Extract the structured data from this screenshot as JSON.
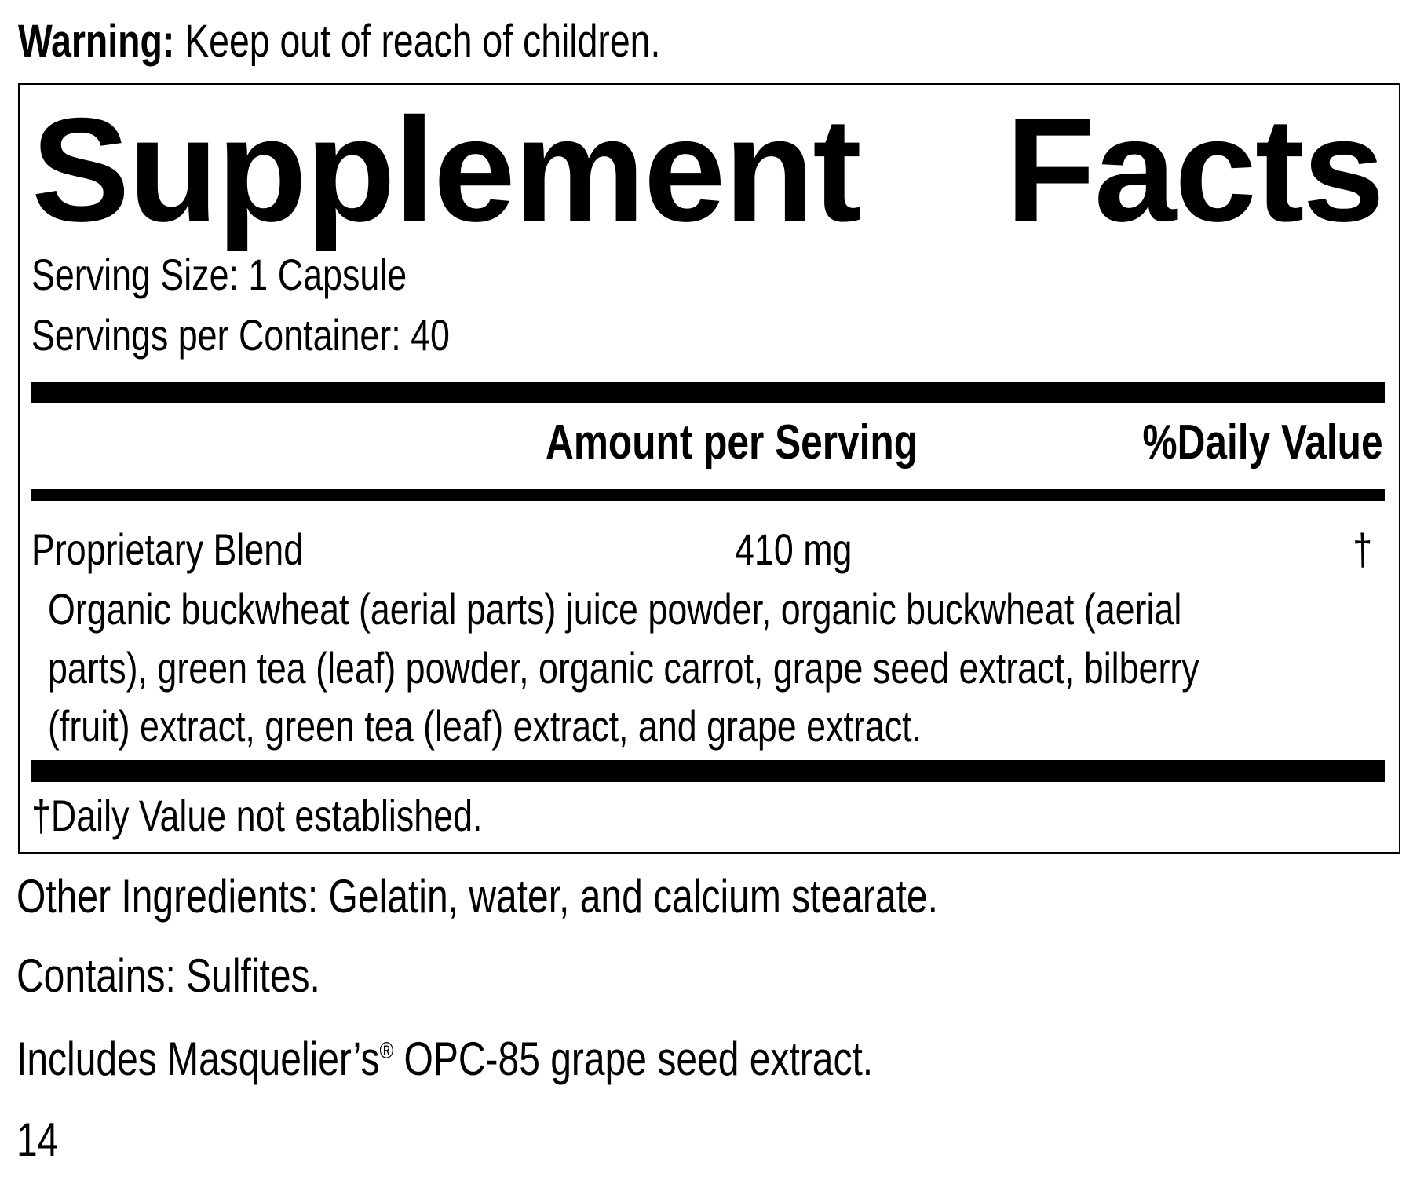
{
  "warning": {
    "label": "Warning:",
    "text": " Keep out of reach of children."
  },
  "panel": {
    "title_words": [
      "Supplement",
      "Facts"
    ],
    "serving_size": "Serving Size: 1 Capsule",
    "servings_per_container": "Servings per Container: 40",
    "header": {
      "amount": "Amount per Serving",
      "daily_value": "%Daily Value"
    },
    "rows": [
      {
        "name": "Proprietary Blend",
        "amount": "410 mg",
        "dv": "†"
      }
    ],
    "blend_lines": [
      "Organic buckwheat (aerial parts) juice powder, organic buckwheat (aerial",
      "parts), green tea (leaf) powder, organic carrot, grape seed extract, bilberry",
      "(fruit) extract, green tea (leaf) extract, and grape extract."
    ],
    "footnote": "†Daily Value not established."
  },
  "other_ingredients": "Other Ingredients: Gelatin, water, and calcium stearate.",
  "contains": "Contains: Sulfites.",
  "includes": {
    "before": "Includes Masquelier’s",
    "mark": "®",
    "after": " OPC-85 grape seed extract."
  },
  "page_number": "14"
}
